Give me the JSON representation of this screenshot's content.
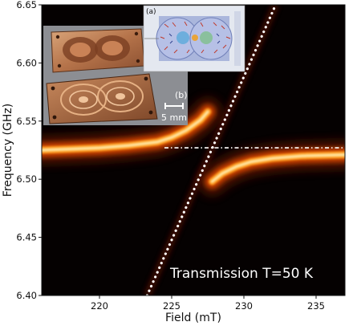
{
  "chart_data": {
    "type": "heatmap",
    "title": "",
    "xlabel": "Field (mT)",
    "ylabel": "Frequency (GHz)",
    "xlim": [
      216,
      237
    ],
    "ylim": [
      6.4,
      6.65
    ],
    "x_ticks": [
      220,
      225,
      230,
      235
    ],
    "y_ticks": [
      6.4,
      6.45,
      6.5,
      6.55,
      6.6,
      6.65
    ],
    "x_tick_labels": [
      "220",
      "225",
      "230",
      "235"
    ],
    "y_tick_labels": [
      "6.40",
      "6.45",
      "6.50",
      "6.55",
      "6.60",
      "6.65"
    ],
    "annotation": "Transmission T=50 K",
    "colormap": "afmhot",
    "cavity_frequency_ghz": 6.527,
    "spin_line": {
      "field_mT": [
        223.3,
        232.2
      ],
      "freq_GHz": [
        6.4,
        6.65
      ]
    },
    "lower_branch_field_mT": [
      216,
      218,
      220,
      222,
      224,
      225,
      226,
      227,
      227.5
    ],
    "lower_branch_freq_GHz": [
      6.525,
      6.526,
      6.527,
      6.529,
      6.532,
      6.536,
      6.542,
      6.551,
      6.558
    ],
    "upper_branch_field_mT": [
      227.8,
      228.5,
      229.5,
      230.5,
      232,
      234,
      237
    ],
    "upper_branch_freq_GHz": [
      6.498,
      6.505,
      6.511,
      6.515,
      6.518,
      6.52,
      6.521
    ],
    "grid": false,
    "legend": "none",
    "inset_scale_label": "5 mm",
    "inset_panel_label_b": "(b)",
    "inset_panel_label_a": "(a)"
  }
}
